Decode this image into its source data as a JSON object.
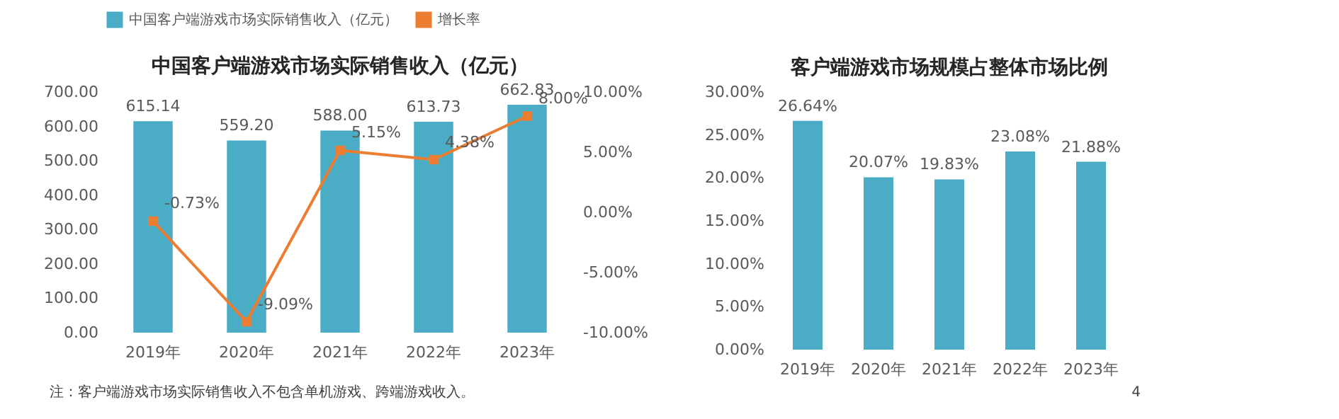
{
  "chart_data": [
    {
      "type": "bar",
      "title": "中国客户端游戏市场实际销售收入（亿元）",
      "categories": [
        "2019年",
        "2020年",
        "2021年",
        "2022年",
        "2023年"
      ],
      "series": [
        {
          "name": "中国客户端游戏市场实际销售收入（亿元）",
          "color": "#4bacc6",
          "values": [
            615.14,
            559.2,
            588.0,
            613.73,
            662.83
          ],
          "value_labels": [
            "615.14",
            "559.20",
            "588.00",
            "613.73",
            "662.83"
          ]
        },
        {
          "name": "增长率",
          "type": "line",
          "axis": "y2",
          "color": "#ed7d31",
          "values": [
            -0.73,
            -9.09,
            5.15,
            4.38,
            8.0
          ],
          "value_labels": [
            "-0.73%",
            "-9.09%",
            "5.15%",
            "4.38%",
            "8.00%"
          ]
        }
      ],
      "ylim": [
        0,
        700
      ],
      "yticks": [
        {
          "value": 0,
          "label": "0.00"
        },
        {
          "value": 100,
          "label": "100.00"
        },
        {
          "value": 200,
          "label": "200.00"
        },
        {
          "value": 300,
          "label": "300.00"
        },
        {
          "value": 400,
          "label": "400.00"
        },
        {
          "value": 500,
          "label": "500.00"
        },
        {
          "value": 600,
          "label": "600.00"
        },
        {
          "value": 700,
          "label": "700.00"
        }
      ],
      "y2lim": [
        -10,
        10
      ],
      "y2ticks": [
        {
          "value": -10,
          "label": "-10.00%"
        },
        {
          "value": -5,
          "label": "-5.00%"
        },
        {
          "value": 0,
          "label": "0.00%"
        },
        {
          "value": 5,
          "label": "5.00%"
        },
        {
          "value": 10,
          "label": "10.00%"
        }
      ],
      "marker": "square",
      "legend": "top",
      "grid": false,
      "annotations": [
        "注：客户端游戏市场实际销售收入不包含单机游戏、跨端游戏收入。"
      ]
    },
    {
      "type": "bar",
      "title": "客户端游戏市场规模占整体市场比例",
      "categories": [
        "2019年",
        "2020年",
        "2021年",
        "2022年",
        "2023年"
      ],
      "series": [
        {
          "color": "#4bacc6",
          "values": [
            26.64,
            20.07,
            19.83,
            23.08,
            21.88
          ],
          "value_labels": [
            "26.64%",
            "20.07%",
            "19.83%",
            "23.08%",
            "21.88%"
          ]
        }
      ],
      "ylim": [
        0,
        30
      ],
      "yticks": [
        {
          "value": 0,
          "label": "0.00%"
        },
        {
          "value": 5,
          "label": "5.00%"
        },
        {
          "value": 10,
          "label": "10.00%"
        },
        {
          "value": 15,
          "label": "15.00%"
        },
        {
          "value": 20,
          "label": "20.00%"
        },
        {
          "value": 25,
          "label": "25.00%"
        },
        {
          "value": 30,
          "label": "30.00%"
        }
      ],
      "grid": false,
      "legend": false,
      "annotations": [
        "4"
      ]
    }
  ]
}
